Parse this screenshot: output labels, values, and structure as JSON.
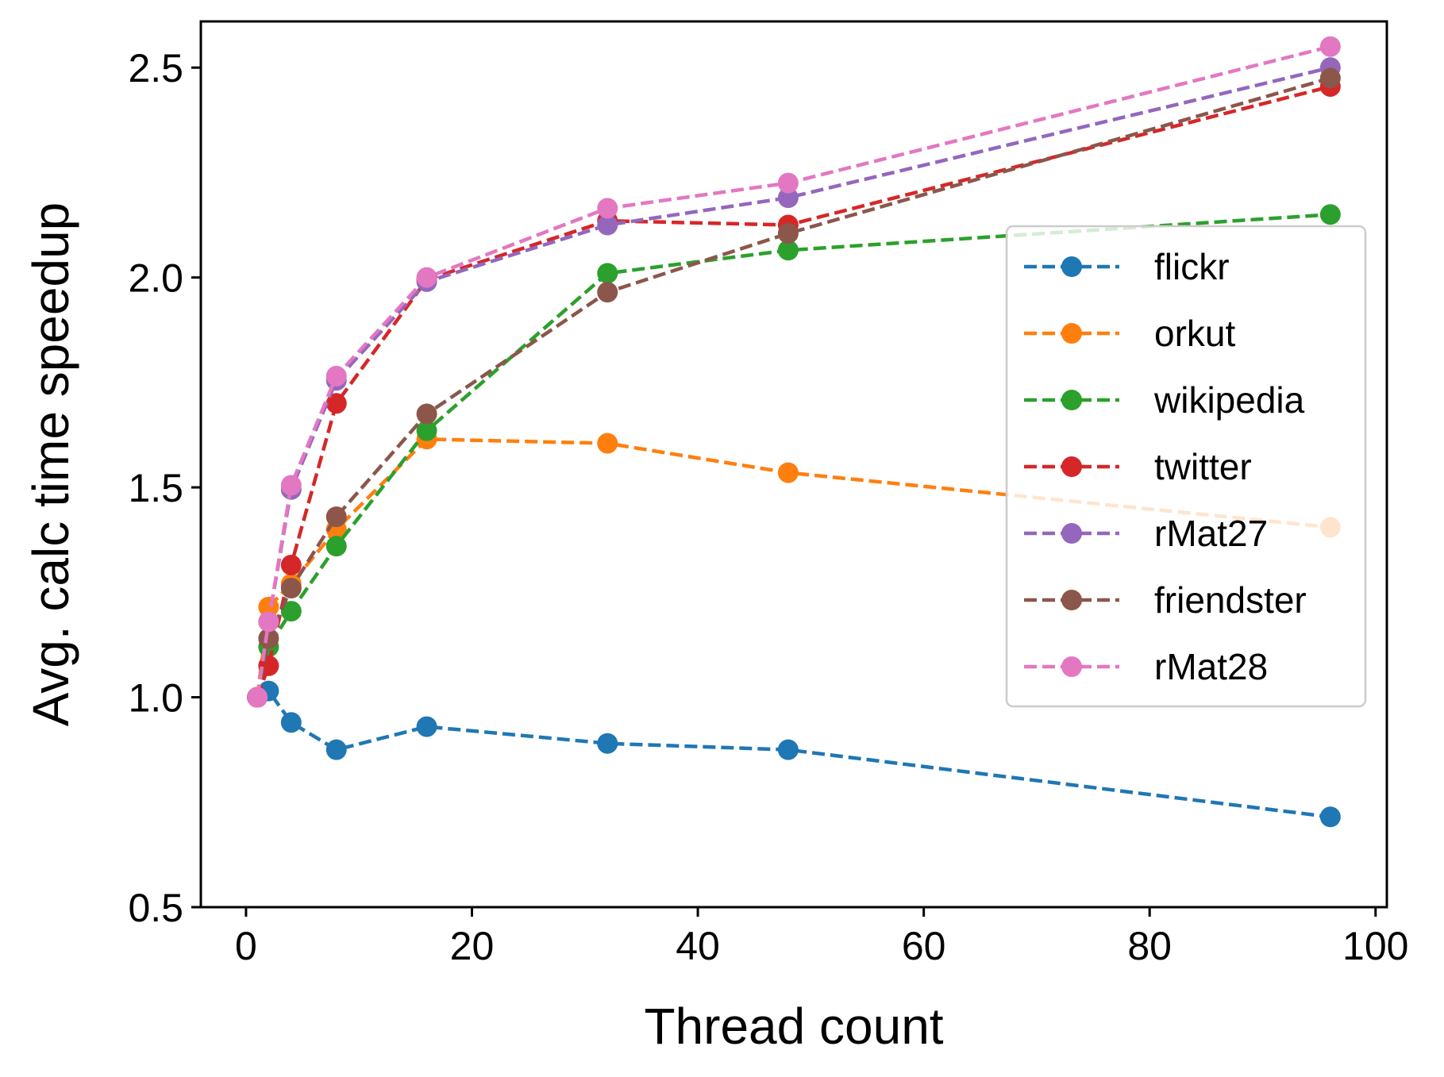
{
  "chart_data": {
    "type": "line",
    "title": "",
    "xlabel": "Thread count",
    "ylabel": "Avg. calc time speedup",
    "xlim": [
      -4,
      101
    ],
    "ylim": [
      0.5,
      2.61
    ],
    "xticks": [
      0,
      20,
      40,
      60,
      80,
      100
    ],
    "xtick_labels": [
      "0",
      "20",
      "40",
      "60",
      "80",
      "100"
    ],
    "yticks": [
      0.5,
      1.0,
      1.5,
      2.0,
      2.5
    ],
    "ytick_labels": [
      "0.5",
      "1.0",
      "1.5",
      "2.0",
      "2.5"
    ],
    "grid": false,
    "line_style": "dashed",
    "marker": "circle",
    "legend_position": "center-right",
    "x": [
      1,
      2,
      4,
      8,
      16,
      32,
      48,
      96
    ],
    "series": [
      {
        "name": "flickr",
        "color": "#1f77b4",
        "values": [
          1.0,
          1.015,
          0.94,
          0.875,
          0.93,
          0.89,
          0.875,
          0.715
        ]
      },
      {
        "name": "orkut",
        "color": "#ff7f0e",
        "values": [
          1.0,
          1.215,
          1.27,
          1.4,
          1.615,
          1.605,
          1.535,
          1.405
        ]
      },
      {
        "name": "wikipedia",
        "color": "#2ca02c",
        "values": [
          1.0,
          1.12,
          1.205,
          1.36,
          1.635,
          2.01,
          2.065,
          2.15
        ]
      },
      {
        "name": "twitter",
        "color": "#d62728",
        "values": [
          1.0,
          1.075,
          1.315,
          1.7,
          1.995,
          2.135,
          2.125,
          2.455
        ]
      },
      {
        "name": "rMat27",
        "color": "#9467bd",
        "values": [
          1.0,
          1.18,
          1.495,
          1.755,
          1.99,
          2.125,
          2.19,
          2.5
        ]
      },
      {
        "name": "friendster",
        "color": "#8c564b",
        "values": [
          1.0,
          1.14,
          1.26,
          1.43,
          1.675,
          1.965,
          2.105,
          2.475
        ]
      },
      {
        "name": "rMat28",
        "color": "#e377c2",
        "values": [
          1.0,
          1.18,
          1.505,
          1.765,
          2.0,
          2.165,
          2.225,
          2.55
        ]
      }
    ]
  }
}
